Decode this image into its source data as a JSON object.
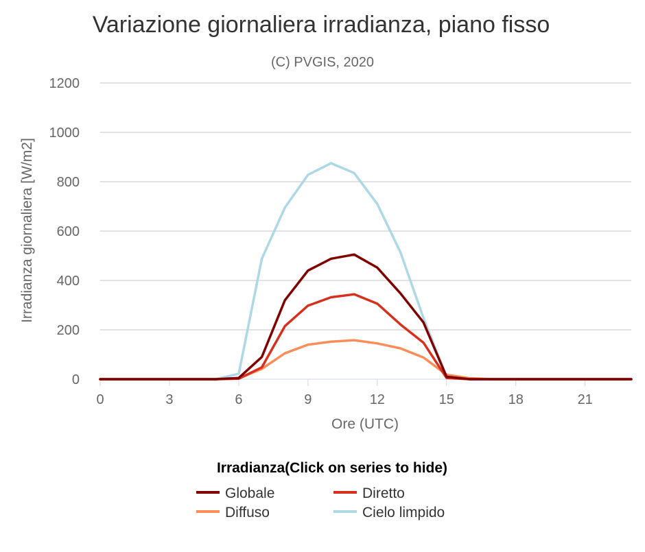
{
  "chart_data": {
    "type": "line",
    "title": "Variazione giornaliera irradianza, piano fisso",
    "subtitle": "(C) PVGIS, 2020",
    "xlabel": "Ore (UTC)",
    "ylabel": "Irradianza giornaliera [W/m2]",
    "xlim": [
      0,
      23
    ],
    "ylim": [
      0,
      1200
    ],
    "x_ticks": [
      0,
      3,
      6,
      9,
      12,
      15,
      18,
      21
    ],
    "y_ticks": [
      0,
      200,
      400,
      600,
      800,
      1000,
      1200
    ],
    "grid": true,
    "legend_title": "Irradianza(Click on series to hide)",
    "legend_position": "bottom",
    "x": [
      0,
      1,
      2,
      3,
      4,
      5,
      6,
      7,
      8,
      9,
      10,
      11,
      12,
      13,
      14,
      15,
      16,
      17,
      18,
      19,
      20,
      21,
      22,
      23
    ],
    "series": [
      {
        "name": "Globale",
        "color": "#800000",
        "values": [
          0,
          0,
          0,
          0,
          0,
          0,
          5,
          90,
          320,
          440,
          488,
          505,
          452,
          348,
          230,
          10,
          0,
          0,
          0,
          0,
          0,
          0,
          0,
          0
        ]
      },
      {
        "name": "Diretto",
        "color": "#d7301f",
        "values": [
          0,
          0,
          0,
          0,
          0,
          0,
          2,
          48,
          215,
          298,
          332,
          344,
          306,
          222,
          148,
          5,
          0,
          0,
          0,
          0,
          0,
          0,
          0,
          0
        ]
      },
      {
        "name": "Diffuso",
        "color": "#fc8d59",
        "values": [
          0,
          0,
          0,
          0,
          0,
          0,
          3,
          42,
          105,
          140,
          152,
          158,
          145,
          125,
          88,
          18,
          4,
          0,
          0,
          0,
          0,
          0,
          0,
          0
        ]
      },
      {
        "name": "Cielo limpido",
        "color": "#add8e6",
        "values": [
          0,
          0,
          0,
          0,
          0,
          0,
          22,
          488,
          695,
          828,
          875,
          835,
          710,
          515,
          248,
          10,
          0,
          0,
          0,
          0,
          0,
          0,
          0,
          0
        ]
      }
    ]
  }
}
